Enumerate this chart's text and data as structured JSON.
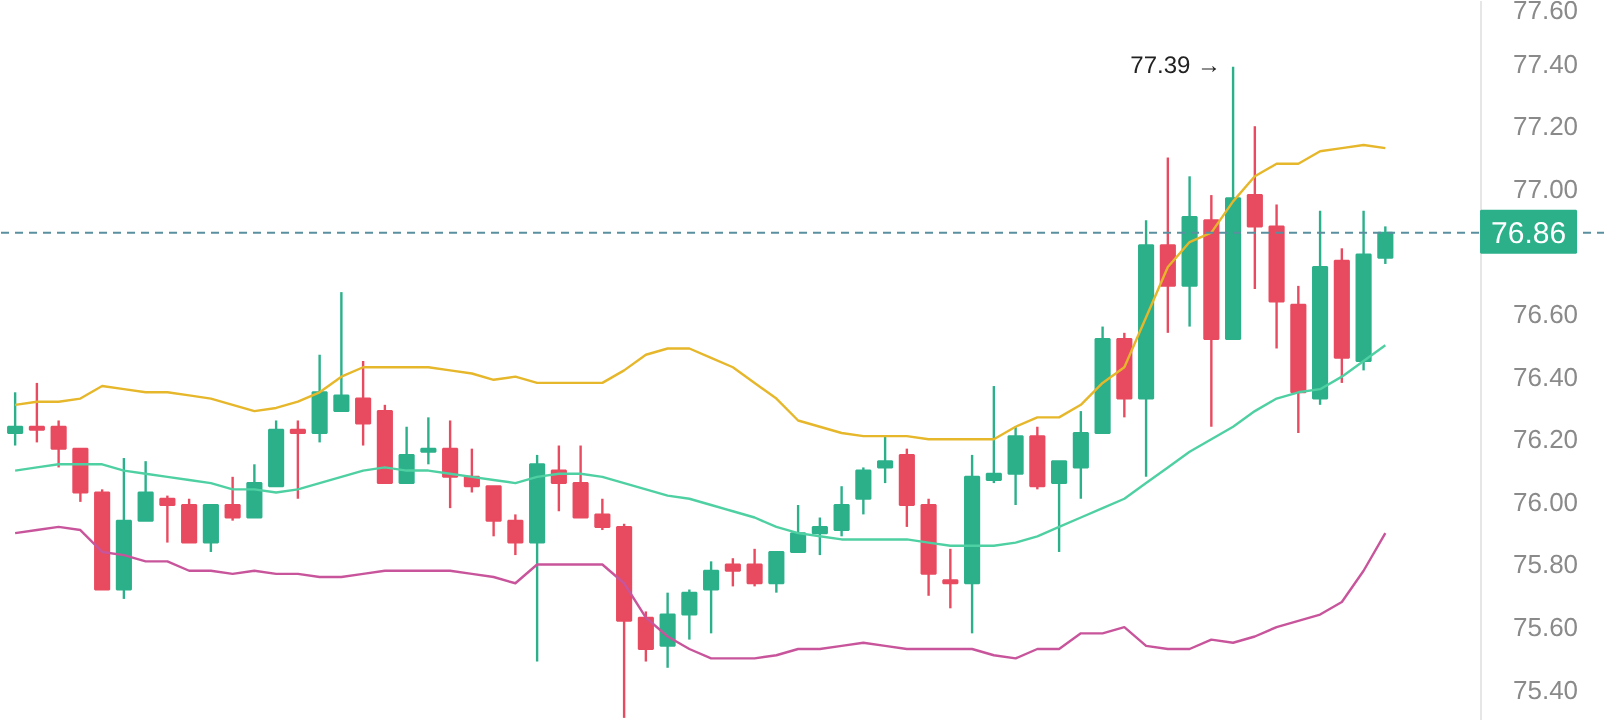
{
  "chart_data": {
    "type": "candlestick",
    "categories": [
      null,
      null,
      null,
      null,
      null,
      null,
      null,
      null,
      null,
      null,
      null,
      null,
      null,
      null,
      null,
      null,
      null,
      null,
      null,
      null,
      null,
      null,
      null,
      null,
      null,
      null,
      null,
      null,
      null,
      null,
      null,
      null,
      null,
      null,
      null,
      null,
      null,
      null,
      null,
      null,
      null,
      null,
      null,
      null,
      null,
      null,
      null,
      null,
      null,
      null,
      null,
      null,
      null,
      null,
      null,
      null,
      null,
      null,
      null,
      null,
      null,
      null,
      null,
      null
    ],
    "ohlc": [
      [
        76.22,
        76.35,
        76.18,
        76.24
      ],
      [
        76.24,
        76.38,
        76.19,
        76.23
      ],
      [
        76.24,
        76.26,
        76.11,
        76.17
      ],
      [
        76.17,
        76.17,
        76.0,
        76.03
      ],
      [
        76.03,
        76.04,
        75.72,
        75.72
      ],
      [
        75.72,
        76.14,
        75.69,
        75.94
      ],
      [
        75.94,
        76.13,
        75.94,
        76.03
      ],
      [
        76.01,
        76.02,
        75.87,
        75.99
      ],
      [
        75.99,
        76.01,
        75.87,
        75.87
      ],
      [
        75.87,
        75.99,
        75.84,
        75.99
      ],
      [
        75.99,
        76.08,
        75.94,
        75.95
      ],
      [
        75.95,
        76.12,
        75.95,
        76.06
      ],
      [
        76.05,
        76.26,
        76.05,
        76.23
      ],
      [
        76.23,
        76.26,
        76.01,
        76.22
      ],
      [
        76.22,
        76.47,
        76.19,
        76.35
      ],
      [
        76.29,
        76.67,
        76.29,
        76.34
      ],
      [
        76.33,
        76.45,
        76.18,
        76.25
      ],
      [
        76.29,
        76.31,
        76.06,
        76.06
      ],
      [
        76.06,
        76.24,
        76.06,
        76.15
      ],
      [
        76.16,
        76.27,
        76.12,
        76.17
      ],
      [
        76.17,
        76.26,
        75.98,
        76.08
      ],
      [
        76.08,
        76.17,
        76.03,
        76.05
      ],
      [
        76.05,
        76.05,
        75.89,
        75.94
      ],
      [
        75.94,
        75.96,
        75.83,
        75.87
      ],
      [
        75.87,
        76.15,
        75.49,
        76.12
      ],
      [
        76.1,
        76.18,
        75.97,
        76.06
      ],
      [
        76.06,
        76.18,
        75.95,
        75.95
      ],
      [
        75.96,
        76.01,
        75.91,
        75.92
      ],
      [
        75.92,
        75.93,
        75.31,
        75.62
      ],
      [
        75.63,
        75.65,
        75.49,
        75.53
      ],
      [
        75.54,
        75.71,
        75.47,
        75.64
      ],
      [
        75.64,
        75.72,
        75.56,
        75.71
      ],
      [
        75.72,
        75.81,
        75.58,
        75.78
      ],
      [
        75.8,
        75.82,
        75.73,
        75.78
      ],
      [
        75.8,
        75.85,
        75.73,
        75.74
      ],
      [
        75.74,
        75.84,
        75.71,
        75.84
      ],
      [
        75.84,
        75.99,
        75.84,
        75.9
      ],
      [
        75.9,
        75.95,
        75.83,
        75.92
      ],
      [
        75.91,
        76.05,
        75.89,
        75.99
      ],
      [
        76.01,
        76.11,
        75.96,
        76.1
      ],
      [
        76.11,
        76.21,
        76.06,
        76.13
      ],
      [
        76.15,
        76.17,
        75.92,
        75.99
      ],
      [
        75.99,
        76.01,
        75.7,
        75.77
      ],
      [
        75.75,
        75.85,
        75.66,
        75.74
      ],
      [
        75.74,
        76.15,
        75.58,
        76.08
      ],
      [
        76.07,
        76.37,
        76.06,
        76.09
      ],
      [
        76.09,
        76.24,
        75.99,
        76.21
      ],
      [
        76.21,
        76.24,
        76.04,
        76.05
      ],
      [
        76.06,
        76.13,
        75.84,
        76.13
      ],
      [
        76.11,
        76.29,
        76.01,
        76.22
      ],
      [
        76.22,
        76.56,
        76.22,
        76.52
      ],
      [
        76.52,
        76.54,
        76.27,
        76.33
      ],
      [
        76.33,
        76.9,
        76.08,
        76.82
      ],
      [
        76.82,
        77.1,
        76.54,
        76.69
      ],
      [
        76.69,
        77.04,
        76.56,
        76.91
      ],
      [
        76.9,
        76.98,
        76.24,
        76.52
      ],
      [
        76.52,
        77.39,
        76.52,
        76.97
      ],
      [
        76.98,
        77.2,
        76.68,
        76.88
      ],
      [
        76.88,
        76.95,
        76.49,
        76.64
      ],
      [
        76.63,
        76.69,
        76.22,
        76.35
      ],
      [
        76.33,
        76.93,
        76.31,
        76.75
      ],
      [
        76.77,
        76.81,
        76.38,
        76.46
      ],
      [
        76.45,
        76.93,
        76.42,
        76.79
      ],
      [
        76.78,
        76.88,
        76.76,
        76.86
      ]
    ],
    "colors": [
      "#2bb08a",
      "#e84a5f",
      "#e84a5f",
      "#e84a5f",
      "#e84a5f",
      "#2bb08a",
      "#2bb08a",
      "#e84a5f",
      "#e84a5f",
      "#2bb08a",
      "#e84a5f",
      "#2bb08a",
      "#2bb08a",
      "#e84a5f",
      "#2bb08a",
      "#2bb08a",
      "#e84a5f",
      "#e84a5f",
      "#2bb08a",
      "#2bb08a",
      "#e84a5f",
      "#e84a5f",
      "#e84a5f",
      "#e84a5f",
      "#2bb08a",
      "#e84a5f",
      "#e84a5f",
      "#e84a5f",
      "#e84a5f",
      "#e84a5f",
      "#2bb08a",
      "#2bb08a",
      "#2bb08a",
      "#e84a5f",
      "#e84a5f",
      "#2bb08a",
      "#2bb08a",
      "#2bb08a",
      "#2bb08a",
      "#2bb08a",
      "#2bb08a",
      "#e84a5f",
      "#e84a5f",
      "#e84a5f",
      "#2bb08a",
      "#2bb08a",
      "#2bb08a",
      "#e84a5f",
      "#2bb08a",
      "#2bb08a",
      "#2bb08a",
      "#e84a5f",
      "#2bb08a",
      "#e84a5f",
      "#2bb08a",
      "#e84a5f",
      "#2bb08a",
      "#e84a5f",
      "#e84a5f",
      "#e84a5f",
      "#2bb08a",
      "#e84a5f",
      "#2bb08a",
      "#2bb08a"
    ],
    "series": [
      {
        "type": "line",
        "color": "#e6b72a",
        "values": [
          76.31,
          76.32,
          76.32,
          76.33,
          76.37,
          76.36,
          76.35,
          76.35,
          76.34,
          76.33,
          76.31,
          76.29,
          76.3,
          76.32,
          76.35,
          76.4,
          76.43,
          76.43,
          76.43,
          76.43,
          76.42,
          76.41,
          76.39,
          76.4,
          76.38,
          76.38,
          76.38,
          76.38,
          76.42,
          76.47,
          76.49,
          76.49,
          76.46,
          76.43,
          76.38,
          76.33,
          76.26,
          76.24,
          76.22,
          76.21,
          76.21,
          76.21,
          76.2,
          76.2,
          76.2,
          76.2,
          76.24,
          76.27,
          76.27,
          76.31,
          76.38,
          76.43,
          76.59,
          76.75,
          76.83,
          76.86,
          76.96,
          77.04,
          77.08,
          77.08,
          77.12,
          77.13,
          77.14,
          77.13
        ]
      },
      {
        "type": "line",
        "color": "#4fd0a3",
        "values": [
          76.1,
          76.11,
          76.12,
          76.12,
          76.12,
          76.1,
          76.09,
          76.08,
          76.07,
          76.06,
          76.04,
          76.04,
          76.03,
          76.04,
          76.06,
          76.08,
          76.1,
          76.11,
          76.1,
          76.1,
          76.09,
          76.08,
          76.07,
          76.06,
          76.08,
          76.09,
          76.09,
          76.08,
          76.06,
          76.04,
          76.02,
          76.01,
          75.99,
          75.97,
          75.95,
          75.92,
          75.9,
          75.89,
          75.88,
          75.88,
          75.88,
          75.88,
          75.87,
          75.86,
          75.86,
          75.86,
          75.87,
          75.89,
          75.92,
          75.95,
          75.98,
          76.01,
          76.06,
          76.11,
          76.16,
          76.2,
          76.24,
          76.29,
          76.33,
          76.35,
          76.36,
          76.4,
          76.45,
          76.5
        ]
      },
      {
        "type": "line",
        "color": "#c8559b",
        "values": [
          75.9,
          75.91,
          75.92,
          75.91,
          75.84,
          75.83,
          75.81,
          75.81,
          75.78,
          75.78,
          75.77,
          75.78,
          75.77,
          75.77,
          75.76,
          75.76,
          75.77,
          75.78,
          75.78,
          75.78,
          75.78,
          75.77,
          75.76,
          75.74,
          75.8,
          75.8,
          75.8,
          75.8,
          75.74,
          75.63,
          75.57,
          75.53,
          75.5,
          75.5,
          75.5,
          75.51,
          75.53,
          75.53,
          75.54,
          75.55,
          75.54,
          75.53,
          75.53,
          75.53,
          75.53,
          75.51,
          75.5,
          75.53,
          75.53,
          75.58,
          75.58,
          75.6,
          75.54,
          75.53,
          75.53,
          75.56,
          75.55,
          75.57,
          75.6,
          75.62,
          75.64,
          75.68,
          75.78,
          75.9
        ]
      }
    ],
    "ylim": [
      75.3,
      77.6
    ],
    "yticks": [
      {
        "value": 75.4,
        "label": "75.40"
      },
      {
        "value": 75.6,
        "label": "75.60"
      },
      {
        "value": 75.8,
        "label": "75.80"
      },
      {
        "value": 76.0,
        "label": "76.00"
      },
      {
        "value": 76.2,
        "label": "76.20"
      },
      {
        "value": 76.4,
        "label": "76.40"
      },
      {
        "value": 76.6,
        "label": "76.60"
      },
      {
        "value": 77.0,
        "label": "77.00"
      },
      {
        "value": 77.2,
        "label": "77.20"
      },
      {
        "value": 77.4,
        "label": "77.40"
      },
      {
        "value": 77.6,
        "label": "77.60"
      }
    ],
    "ref_lines": [
      {
        "axis": "y",
        "value": 76.86,
        "label": "76.86",
        "color": "#5a8fa0",
        "line_style": "dashed"
      }
    ],
    "annotations": [
      "77.39 →"
    ],
    "tick_labels": "y",
    "grid": false
  }
}
